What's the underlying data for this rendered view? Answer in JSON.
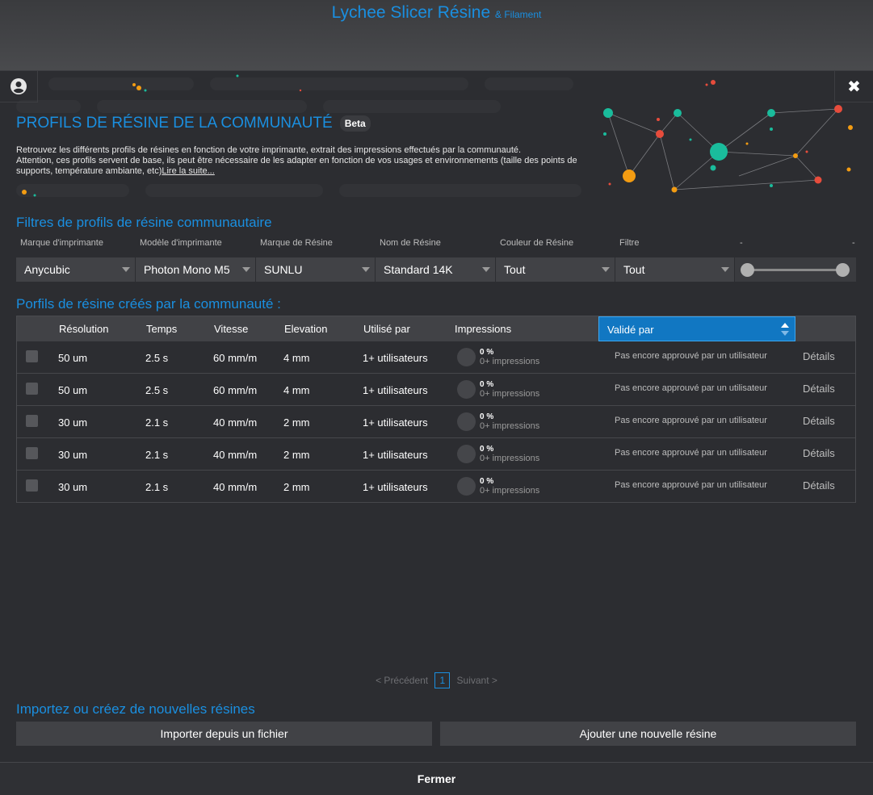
{
  "app": {
    "title": "Lychee Slicer Résine",
    "subtitle": "& Filament"
  },
  "colors": {
    "accent": "#1a8fe0",
    "sort_header": "#1177c2"
  },
  "hero": {
    "title": "PROFILS DE RÉSINE DE LA COMMUNAUTÉ",
    "badge": "Beta",
    "desc_line1": "Retrouvez les différents profils de résines en fonction de votre imprimante, extrait des impressions effectués par la communauté.",
    "desc_line2": "Attention, ces profils servent de base, ils peut être nécessaire de les adapter en fonction de vos usages et environnements (taille des points de supports, température ambiante, etc)",
    "read_more": "Lire la suite..."
  },
  "filters": {
    "title": "Filtres de profils de résine communautaire",
    "labels": [
      "Marque d'imprimante",
      "Modèle d'imprimante",
      "Marque de Résine",
      "Nom de Résine",
      "Couleur de Résine",
      "Filtre"
    ],
    "range_labels": [
      "-",
      "-"
    ],
    "values": [
      "Anycubic",
      "Photon Mono M5",
      "SUNLU",
      "Standard 14K",
      "Tout",
      "Tout"
    ]
  },
  "table": {
    "title": "Porfils de résine créés par la communauté :",
    "headers": [
      "Résolution",
      "Temps",
      "Vitesse",
      "Elevation",
      "Utilisé par",
      "Impressions",
      "Validé par"
    ],
    "rows": [
      {
        "res": "50 um",
        "time": "2.5 s",
        "speed": "60 mm/m",
        "elev": "4 mm",
        "used": "1+ utilisateurs",
        "pct": "0 %",
        "prints": "0+ impressions",
        "valid": "Pas encore approuvé par un utilisateur",
        "details": "Détails"
      },
      {
        "res": "50 um",
        "time": "2.5 s",
        "speed": "60 mm/m",
        "elev": "4 mm",
        "used": "1+ utilisateurs",
        "pct": "0 %",
        "prints": "0+ impressions",
        "valid": "Pas encore approuvé par un utilisateur",
        "details": "Détails"
      },
      {
        "res": "30 um",
        "time": "2.1 s",
        "speed": "40 mm/m",
        "elev": "2 mm",
        "used": "1+ utilisateurs",
        "pct": "0 %",
        "prints": "0+ impressions",
        "valid": "Pas encore approuvé par un utilisateur",
        "details": "Détails"
      },
      {
        "res": "30 um",
        "time": "2.1 s",
        "speed": "40 mm/m",
        "elev": "2 mm",
        "used": "1+ utilisateurs",
        "pct": "0 %",
        "prints": "0+ impressions",
        "valid": "Pas encore approuvé par un utilisateur",
        "details": "Détails"
      },
      {
        "res": "30 um",
        "time": "2.1 s",
        "speed": "40 mm/m",
        "elev": "2 mm",
        "used": "1+ utilisateurs",
        "pct": "0 %",
        "prints": "0+ impressions",
        "valid": "Pas encore approuvé par un utilisateur",
        "details": "Détails"
      }
    ]
  },
  "pager": {
    "prev": "< Précédent",
    "page": "1",
    "next": "Suivant >"
  },
  "import": {
    "title": "Importez ou créez de nouvelles résines",
    "import_button": "Importer depuis un fichier",
    "add_button": "Ajouter une nouvelle résine"
  },
  "footer": {
    "close": "Fermer"
  }
}
